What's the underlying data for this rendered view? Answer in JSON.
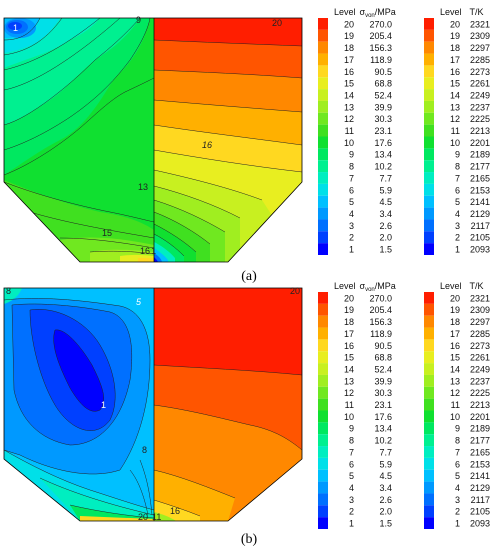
{
  "chart_data": [
    {
      "type": "heatmap",
      "panel_caption": "(a)",
      "legends": [
        {
          "header": [
            "Level",
            "σ",
            "von",
            "/MPa"
          ],
          "levels": [
            20,
            19,
            18,
            17,
            16,
            15,
            14,
            13,
            12,
            11,
            10,
            9,
            8,
            7,
            6,
            5,
            4,
            3,
            2,
            1
          ],
          "values": [
            "270.0",
            "205.4",
            "156.3",
            "118.9",
            "90.5",
            "68.8",
            "52.4",
            "39.9",
            "30.3",
            "23.1",
            "17.6",
            "13.4",
            "10.2",
            "7.7",
            "5.9",
            "4.5",
            "3.4",
            "2.6",
            "2.0",
            "1.5"
          ]
        },
        {
          "header": [
            "Level",
            "T/K"
          ],
          "levels": [
            20,
            19,
            18,
            17,
            16,
            15,
            14,
            13,
            12,
            11,
            10,
            9,
            8,
            7,
            6,
            5,
            4,
            3,
            2,
            1
          ],
          "values": [
            "2321",
            "2309",
            "2297",
            "2285",
            "2273",
            "2261",
            "2249",
            "2237",
            "2225",
            "2213",
            "2201",
            "2189",
            "2177",
            "2165",
            "2153",
            "2141",
            "2129",
            "2117",
            "2105",
            "2093"
          ]
        }
      ],
      "contour_labels": [
        "1",
        "9",
        "20",
        "16",
        "13",
        "15",
        "16",
        "1"
      ]
    },
    {
      "type": "heatmap",
      "panel_caption": "(b)",
      "legends": [
        {
          "header": [
            "Level",
            "σ",
            "von",
            "/MPa"
          ],
          "levels": [
            20,
            19,
            18,
            17,
            16,
            15,
            14,
            13,
            12,
            11,
            10,
            9,
            8,
            7,
            6,
            5,
            4,
            3,
            2,
            1
          ],
          "values": [
            "270.0",
            "205.4",
            "156.3",
            "118.9",
            "90.5",
            "68.8",
            "52.4",
            "39.9",
            "30.3",
            "23.1",
            "17.6",
            "13.4",
            "10.2",
            "7.7",
            "5.9",
            "4.5",
            "3.4",
            "2.6",
            "2.0",
            "1.5"
          ]
        },
        {
          "header": [
            "Level",
            "T/K"
          ],
          "levels": [
            20,
            19,
            18,
            17,
            16,
            15,
            14,
            13,
            12,
            11,
            10,
            9,
            8,
            7,
            6,
            5,
            4,
            3,
            2,
            1
          ],
          "values": [
            "2321",
            "2309",
            "2297",
            "2285",
            "2273",
            "2261",
            "2249",
            "2237",
            "2225",
            "2213",
            "2201",
            "2189",
            "2177",
            "2165",
            "2153",
            "2141",
            "2129",
            "2117",
            "2105",
            "2093"
          ]
        }
      ],
      "contour_labels": [
        "8",
        "5",
        "20",
        "1",
        "8",
        "16",
        "20",
        "11"
      ]
    }
  ],
  "palette": [
    "#0000ff",
    "#0040ff",
    "#0070ff",
    "#0099ff",
    "#00c0ff",
    "#00e0e8",
    "#00eec0",
    "#00f090",
    "#00e860",
    "#10e030",
    "#40e020",
    "#70e820",
    "#a0ee20",
    "#c8f020",
    "#e8ee20",
    "#ffd820",
    "#ffb000",
    "#ff8800",
    "#ff5500",
    "#ff1e00"
  ]
}
